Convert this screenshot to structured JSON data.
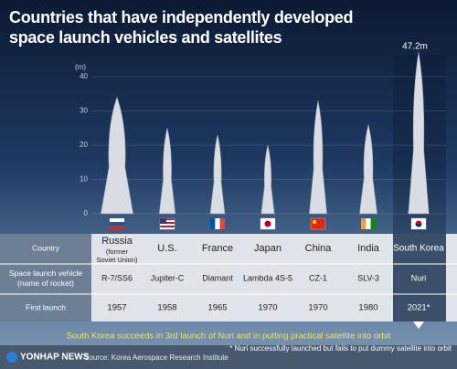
{
  "chart_data": {
    "type": "rocket",
    "title": "Countries that have independently developed space launch vehicles and satellites",
    "y_unit": "(m)",
    "categories": [
      "Russia",
      "U.S.",
      "France",
      "Japan",
      "China",
      "India",
      "South Korea"
    ],
    "values": [
      34,
      25,
      23,
      20,
      33,
      26,
      47.2
    ],
    "value_labels": [
      null,
      null,
      null,
      null,
      null,
      null,
      "47.2m"
    ],
    "color": "#d9dde3",
    "ylim": [
      0,
      40
    ],
    "yticks": [
      0,
      10,
      20,
      30,
      40
    ]
  },
  "table": {
    "row_labels": [
      "Country",
      "Space launch vehicle (name of rocket)",
      "First launch"
    ],
    "country_note": "(former Soviet Union)",
    "rockets": [
      "R-7/SS6",
      "Jupiter-C",
      "Diamant",
      "Lambda 4S-5",
      "CZ-1",
      "SLV-3",
      "Nuri"
    ],
    "first_launch": [
      "1957",
      "1958",
      "1965",
      "1970",
      "1970",
      "1980",
      "2021*"
    ]
  },
  "footer": {
    "headline": "South Korea succeeds in 3rd launch of Nuri and in putting practical satellite into orbit",
    "note": "* Nuri successfully launched but fails to put dummy satellite into orbit",
    "brand": "YONHAP NEWS",
    "source": "Source: Korea Aerospace Research Institute"
  }
}
